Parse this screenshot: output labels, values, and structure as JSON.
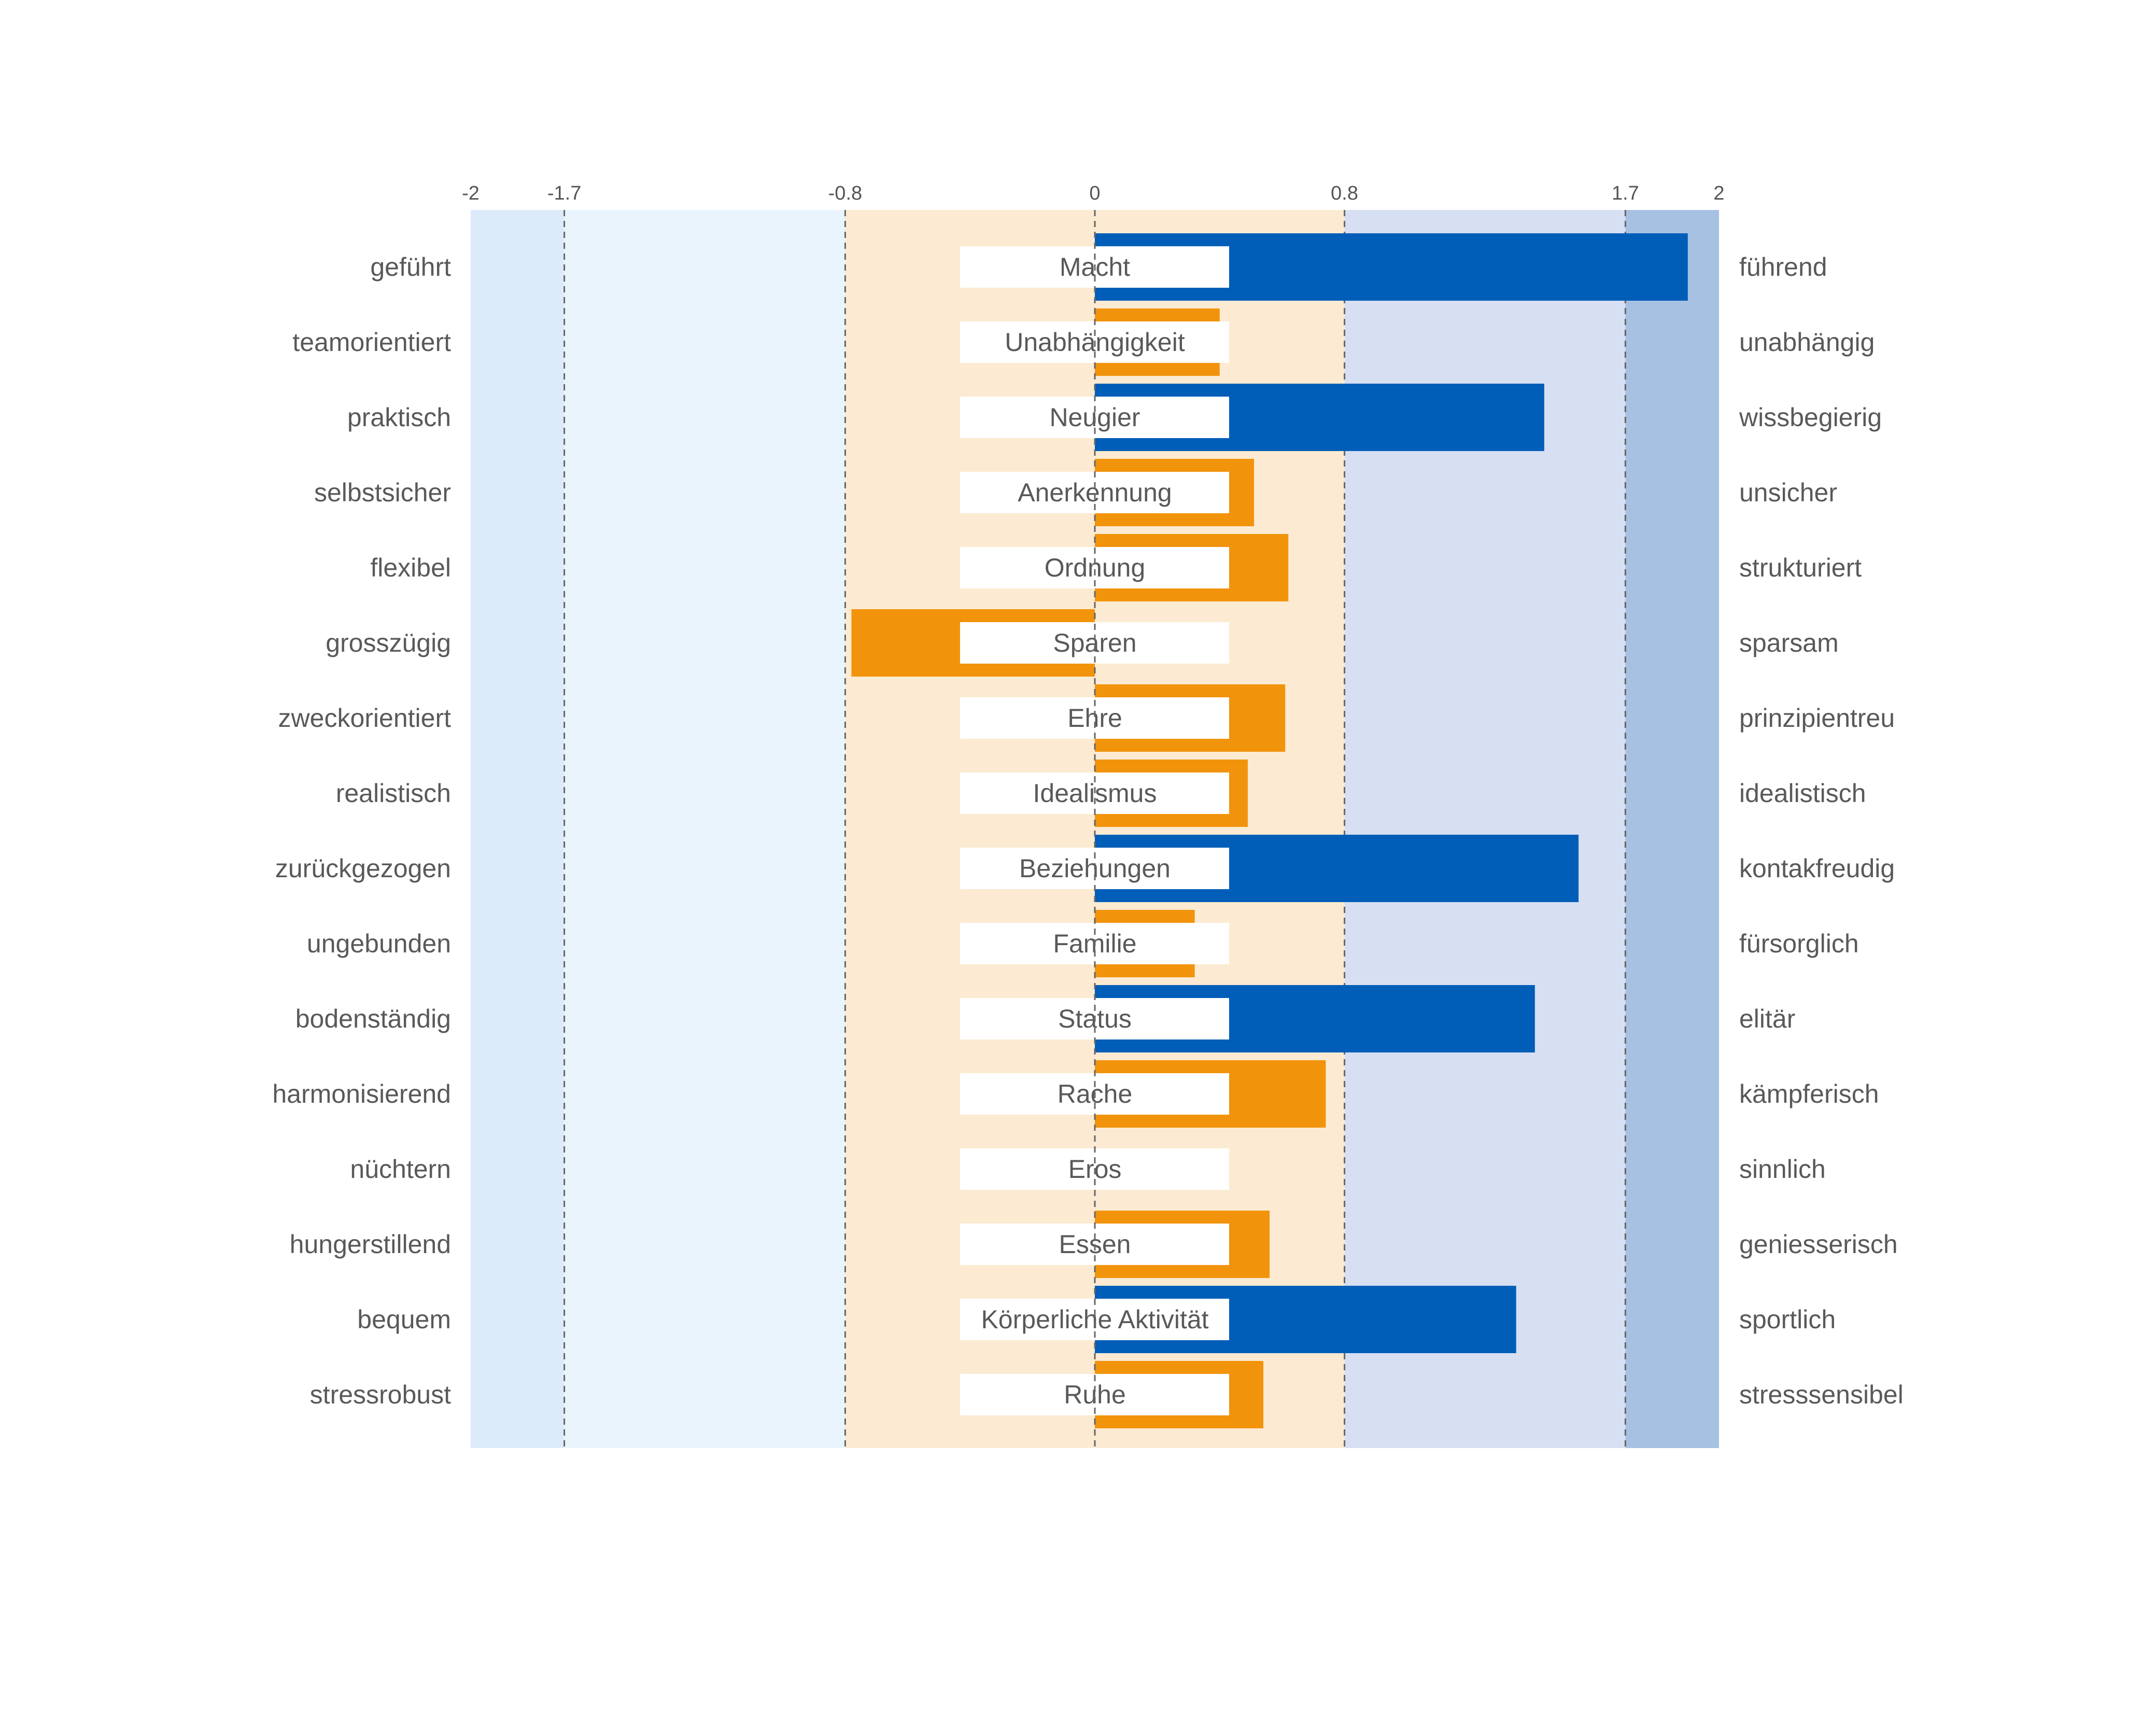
{
  "chart_data": {
    "type": "bar",
    "title": "",
    "xlim": [
      -2,
      2
    ],
    "xticks": [
      "-2",
      "-1.7",
      "-0.8",
      "0",
      "0.8",
      "1.7",
      "2"
    ],
    "zones": [
      {
        "from": -2,
        "to": -1.7,
        "color": "#dcebfa"
      },
      {
        "from": -1.7,
        "to": -0.8,
        "color": "#eaf4fd"
      },
      {
        "from": -0.8,
        "to": 0.8,
        "color": "#fcebd2"
      },
      {
        "from": 0.8,
        "to": 1.7,
        "color": "#d7dff2"
      },
      {
        "from": 1.7,
        "to": 2,
        "color": "#a7c1e3"
      }
    ],
    "colors": {
      "moderate": "#f2930c",
      "high": "#005eb8",
      "label_box": "#ffffff",
      "dashed_line": "#666666"
    },
    "categories": [
      "Macht",
      "Unabhängigkeit",
      "Neugier",
      "Anerkennung",
      "Ordnung",
      "Sparen",
      "Ehre",
      "Idealismus",
      "Beziehungen",
      "Familie",
      "Status",
      "Rache",
      "Eros",
      "Essen",
      "Körperliche Aktivität",
      "Ruhe"
    ],
    "left_labels": [
      "geführt",
      "teamorientiert",
      "praktisch",
      "selbstsicher",
      "flexibel",
      "grosszügig",
      "zweckorientiert",
      "realistisch",
      "zurückgezogen",
      "ungebunden",
      "bodenständig",
      "harmonisierend",
      "nüchtern",
      "hungerstillend",
      "bequem",
      "stressrobust"
    ],
    "right_labels": [
      "führend",
      "unabhängig",
      "wissbegierig",
      "unsicher",
      "strukturiert",
      "sparsam",
      "prinzipientreu",
      "idealistisch",
      "kontakfreudig",
      "fürsorglich",
      "elitär",
      "kämpferisch",
      "sinnlich",
      "geniesserisch",
      "sportlich",
      "stresssensibel"
    ],
    "values": [
      1.9,
      0.4,
      1.44,
      0.51,
      0.62,
      -0.78,
      0.61,
      0.49,
      1.55,
      0.32,
      1.41,
      0.74,
      0.0,
      0.56,
      1.35,
      0.54
    ]
  }
}
